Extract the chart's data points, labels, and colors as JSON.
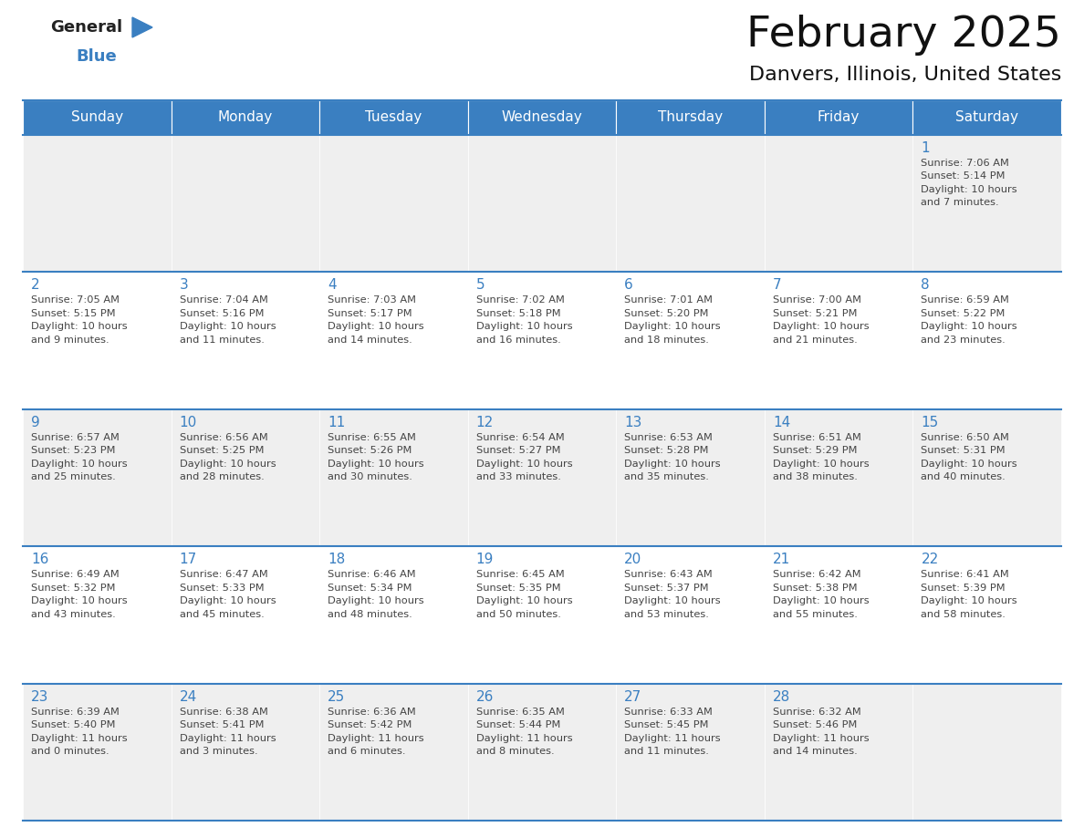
{
  "title": "February 2025",
  "subtitle": "Danvers, Illinois, United States",
  "days_of_week": [
    "Sunday",
    "Monday",
    "Tuesday",
    "Wednesday",
    "Thursday",
    "Friday",
    "Saturday"
  ],
  "header_bg": "#3a7fc1",
  "header_text": "#ffffff",
  "cell_bg_light": "#efefef",
  "cell_bg_white": "#ffffff",
  "day_num_color": "#3a7fc1",
  "text_color": "#444444",
  "line_color": "#3a7fc1",
  "calendar_data": [
    [
      null,
      null,
      null,
      null,
      null,
      null,
      {
        "day": 1,
        "sunrise": "7:06 AM",
        "sunset": "5:14 PM",
        "daylight": "10 hours and 7 minutes"
      }
    ],
    [
      {
        "day": 2,
        "sunrise": "7:05 AM",
        "sunset": "5:15 PM",
        "daylight": "10 hours and 9 minutes"
      },
      {
        "day": 3,
        "sunrise": "7:04 AM",
        "sunset": "5:16 PM",
        "daylight": "10 hours and 11 minutes"
      },
      {
        "day": 4,
        "sunrise": "7:03 AM",
        "sunset": "5:17 PM",
        "daylight": "10 hours and 14 minutes"
      },
      {
        "day": 5,
        "sunrise": "7:02 AM",
        "sunset": "5:18 PM",
        "daylight": "10 hours and 16 minutes"
      },
      {
        "day": 6,
        "sunrise": "7:01 AM",
        "sunset": "5:20 PM",
        "daylight": "10 hours and 18 minutes"
      },
      {
        "day": 7,
        "sunrise": "7:00 AM",
        "sunset": "5:21 PM",
        "daylight": "10 hours and 21 minutes"
      },
      {
        "day": 8,
        "sunrise": "6:59 AM",
        "sunset": "5:22 PM",
        "daylight": "10 hours and 23 minutes"
      }
    ],
    [
      {
        "day": 9,
        "sunrise": "6:57 AM",
        "sunset": "5:23 PM",
        "daylight": "10 hours and 25 minutes"
      },
      {
        "day": 10,
        "sunrise": "6:56 AM",
        "sunset": "5:25 PM",
        "daylight": "10 hours and 28 minutes"
      },
      {
        "day": 11,
        "sunrise": "6:55 AM",
        "sunset": "5:26 PM",
        "daylight": "10 hours and 30 minutes"
      },
      {
        "day": 12,
        "sunrise": "6:54 AM",
        "sunset": "5:27 PM",
        "daylight": "10 hours and 33 minutes"
      },
      {
        "day": 13,
        "sunrise": "6:53 AM",
        "sunset": "5:28 PM",
        "daylight": "10 hours and 35 minutes"
      },
      {
        "day": 14,
        "sunrise": "6:51 AM",
        "sunset": "5:29 PM",
        "daylight": "10 hours and 38 minutes"
      },
      {
        "day": 15,
        "sunrise": "6:50 AM",
        "sunset": "5:31 PM",
        "daylight": "10 hours and 40 minutes"
      }
    ],
    [
      {
        "day": 16,
        "sunrise": "6:49 AM",
        "sunset": "5:32 PM",
        "daylight": "10 hours and 43 minutes"
      },
      {
        "day": 17,
        "sunrise": "6:47 AM",
        "sunset": "5:33 PM",
        "daylight": "10 hours and 45 minutes"
      },
      {
        "day": 18,
        "sunrise": "6:46 AM",
        "sunset": "5:34 PM",
        "daylight": "10 hours and 48 minutes"
      },
      {
        "day": 19,
        "sunrise": "6:45 AM",
        "sunset": "5:35 PM",
        "daylight": "10 hours and 50 minutes"
      },
      {
        "day": 20,
        "sunrise": "6:43 AM",
        "sunset": "5:37 PM",
        "daylight": "10 hours and 53 minutes"
      },
      {
        "day": 21,
        "sunrise": "6:42 AM",
        "sunset": "5:38 PM",
        "daylight": "10 hours and 55 minutes"
      },
      {
        "day": 22,
        "sunrise": "6:41 AM",
        "sunset": "5:39 PM",
        "daylight": "10 hours and 58 minutes"
      }
    ],
    [
      {
        "day": 23,
        "sunrise": "6:39 AM",
        "sunset": "5:40 PM",
        "daylight": "11 hours and 0 minutes"
      },
      {
        "day": 24,
        "sunrise": "6:38 AM",
        "sunset": "5:41 PM",
        "daylight": "11 hours and 3 minutes"
      },
      {
        "day": 25,
        "sunrise": "6:36 AM",
        "sunset": "5:42 PM",
        "daylight": "11 hours and 6 minutes"
      },
      {
        "day": 26,
        "sunrise": "6:35 AM",
        "sunset": "5:44 PM",
        "daylight": "11 hours and 8 minutes"
      },
      {
        "day": 27,
        "sunrise": "6:33 AM",
        "sunset": "5:45 PM",
        "daylight": "11 hours and 11 minutes"
      },
      {
        "day": 28,
        "sunrise": "6:32 AM",
        "sunset": "5:46 PM",
        "daylight": "11 hours and 14 minutes"
      },
      null
    ]
  ],
  "fig_width": 11.88,
  "fig_height": 9.18,
  "dpi": 100
}
